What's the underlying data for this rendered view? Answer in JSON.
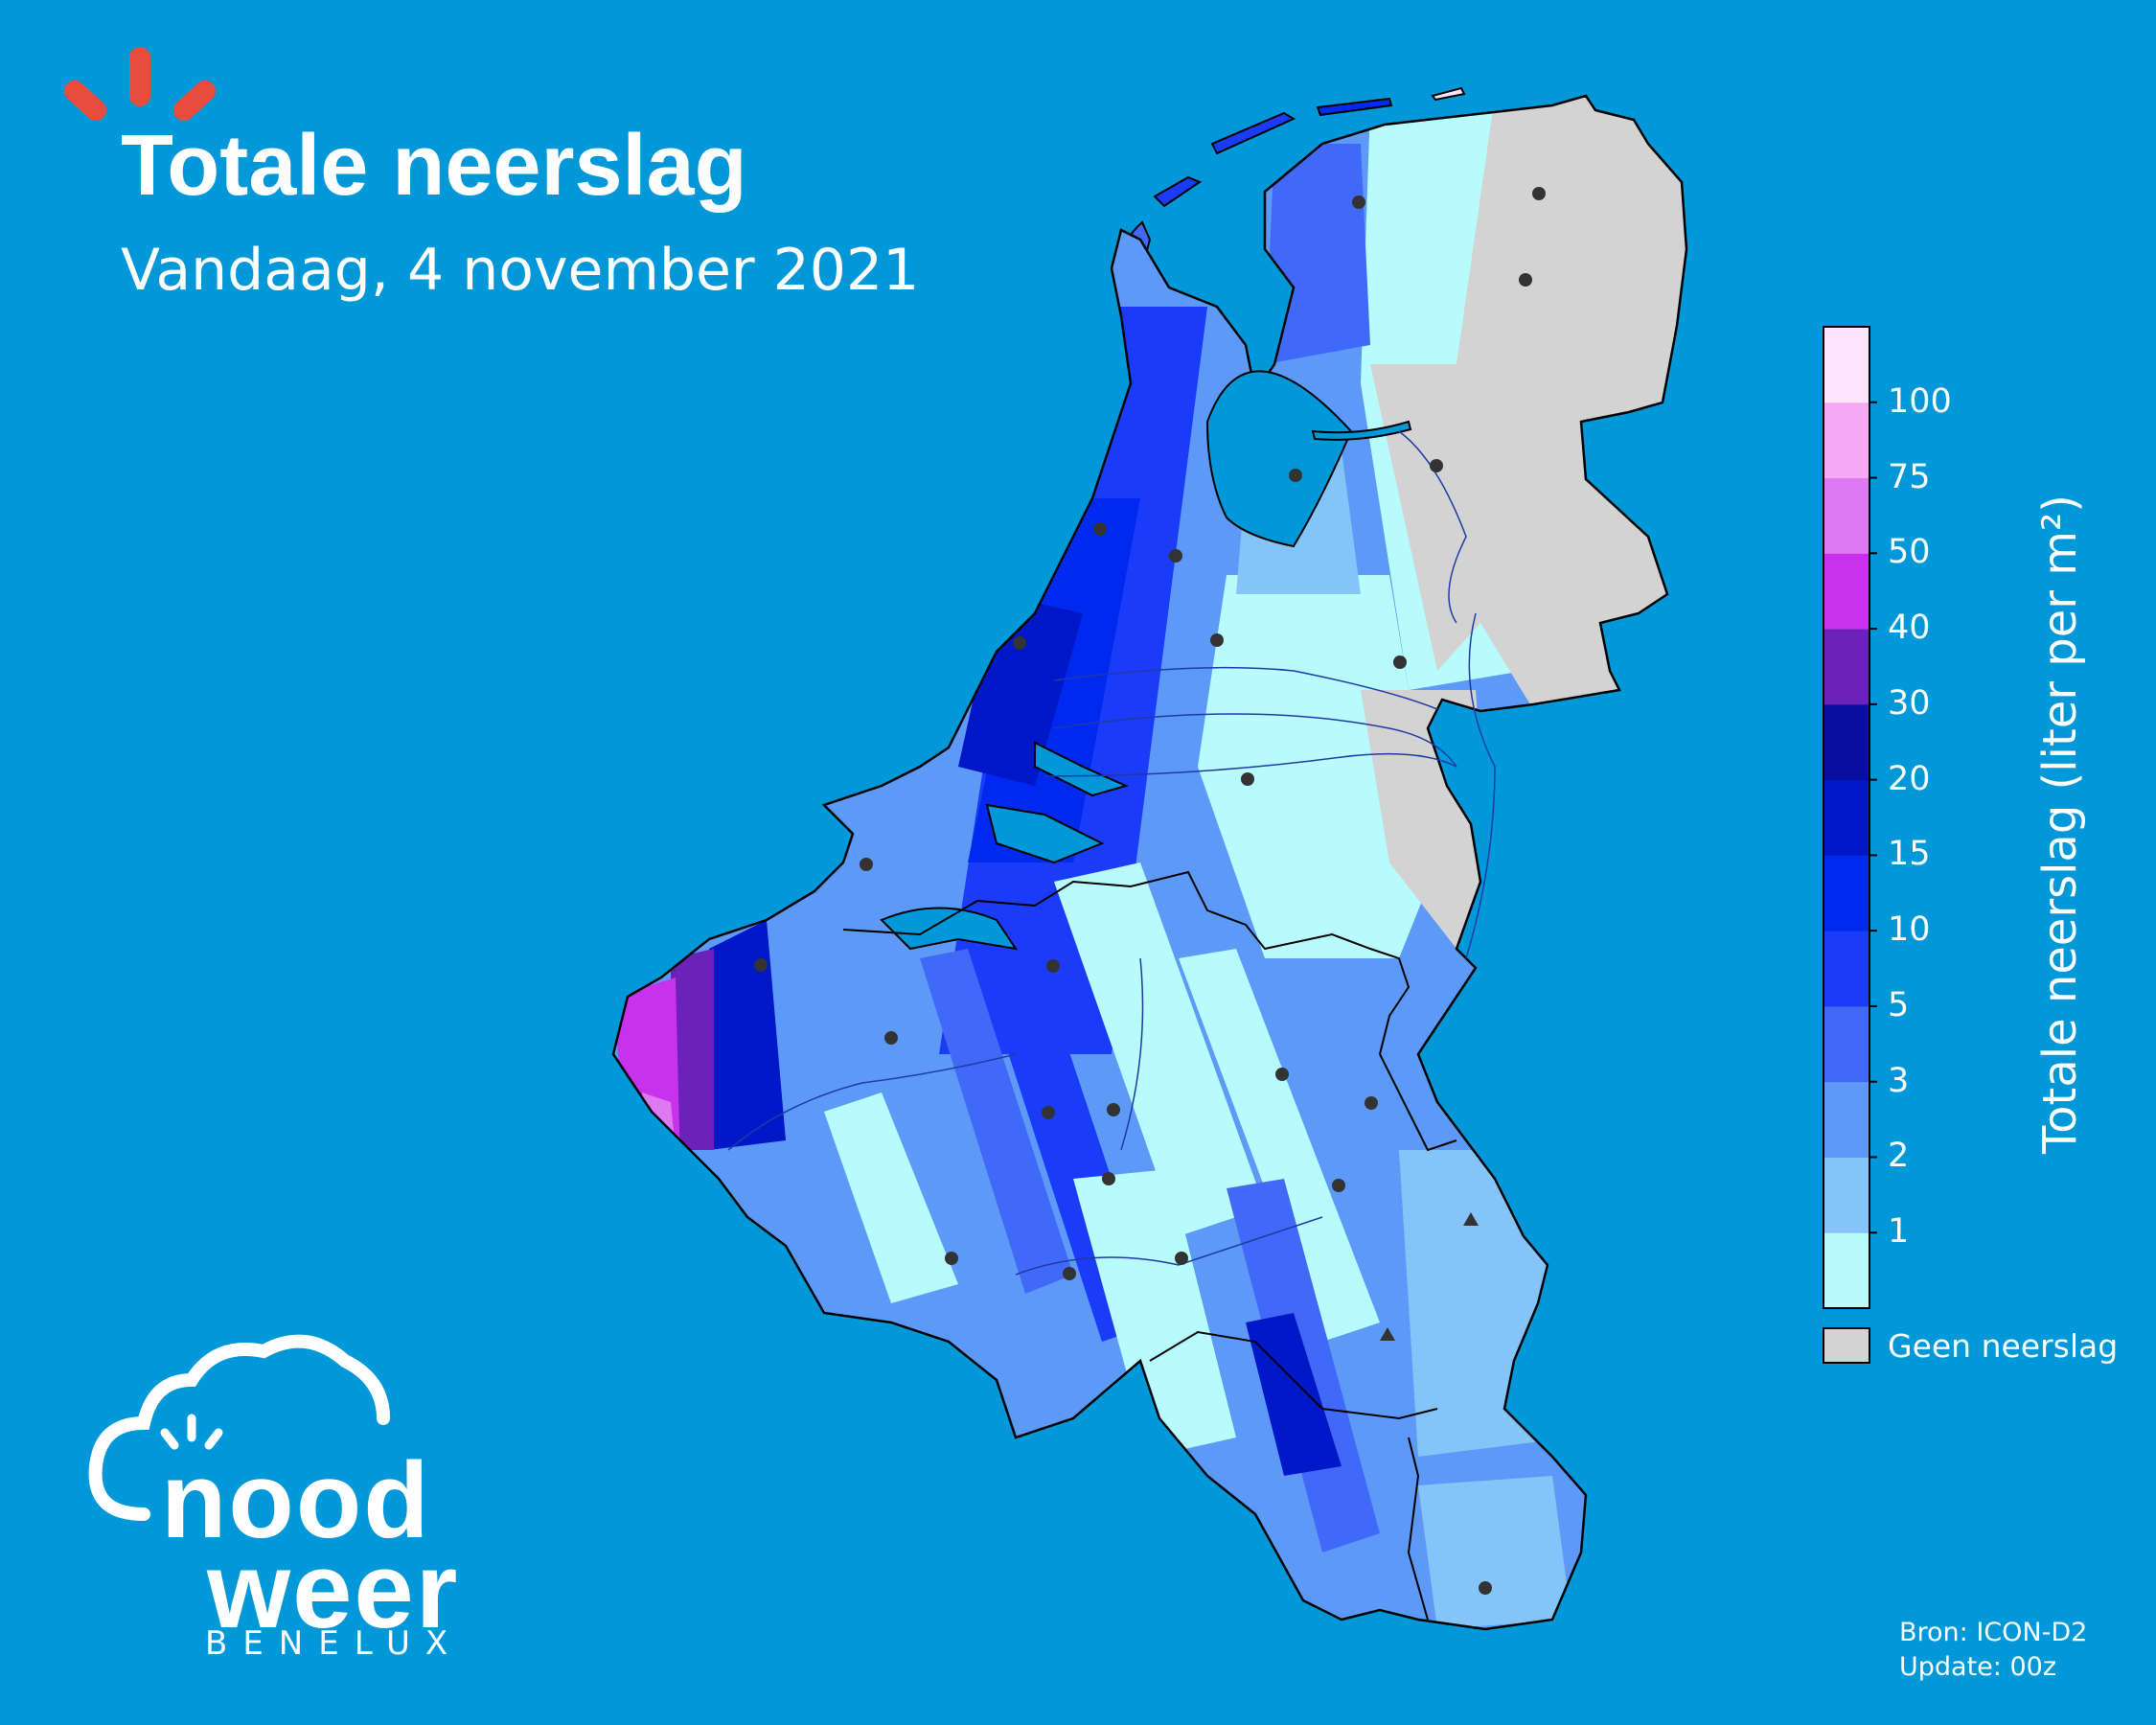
{
  "header": {
    "title": "Totale neerslag",
    "subtitle": "Vandaag, 4 november 2021"
  },
  "map": {
    "region": "Benelux",
    "variable": "Totale neerslag",
    "colors": {
      "background": "#0098d8",
      "no_data": "#d3d3d3",
      "land_outline": "#000000",
      "city_marker": "#333333"
    }
  },
  "colorbar": {
    "title": "Totale neerslag (liter per m²)",
    "ticks": [
      "1",
      "2",
      "3",
      "5",
      "10",
      "15",
      "20",
      "30",
      "40",
      "50",
      "75",
      "100"
    ],
    "bins": [
      {
        "from": 0,
        "to": 1,
        "color": "#b8fbfd"
      },
      {
        "from": 1,
        "to": 2,
        "color": "#85c4f8"
      },
      {
        "from": 2,
        "to": 3,
        "color": "#5d9af8"
      },
      {
        "from": 3,
        "to": 5,
        "color": "#4169f8"
      },
      {
        "from": 5,
        "to": 10,
        "color": "#1a3cf8"
      },
      {
        "from": 10,
        "to": 15,
        "color": "#0029f0"
      },
      {
        "from": 15,
        "to": 20,
        "color": "#0018c8"
      },
      {
        "from": 20,
        "to": 30,
        "color": "#0a0e9e"
      },
      {
        "from": 30,
        "to": 40,
        "color": "#6a22b8"
      },
      {
        "from": 40,
        "to": 50,
        "color": "#c832ec"
      },
      {
        "from": 50,
        "to": 75,
        "color": "#dd79f2"
      },
      {
        "from": 75,
        "to": 100,
        "color": "#f5a8f6"
      },
      {
        "from": 100,
        "to": 101,
        "color": "#fde4fd"
      }
    ],
    "no_data_label": "Geen neerslag",
    "no_data_color": "#d3d3d3"
  },
  "source": {
    "line1": "Bron: ICON-D2",
    "line2": "Update: 00z"
  },
  "brand": {
    "word1": "nood",
    "word2": "weer",
    "tagline": "BENELUX",
    "accent_color": "#e74c3c"
  }
}
